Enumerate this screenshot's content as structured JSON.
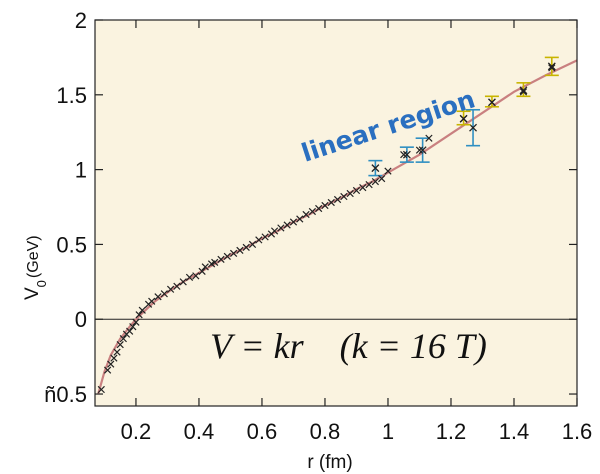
{
  "chart_data": {
    "type": "scatter",
    "title": "",
    "xlabel": "r (fm)",
    "ylabel_main": "V",
    "ylabel_sub": "0",
    "ylabel_unit": "(GeV)",
    "xlim": [
      0.07,
      1.6
    ],
    "ylim": [
      -0.58,
      2.0
    ],
    "x_ticks": [
      0.2,
      0.4,
      0.6,
      0.8,
      1,
      1.2,
      1.4,
      1.6
    ],
    "x_tick_labels": [
      "0.2",
      "0.4",
      "0.6",
      "0.8",
      "1",
      "1.2",
      "1.4",
      "1.6"
    ],
    "y_ticks": [
      -0.5,
      0,
      0.5,
      1,
      1.5,
      2
    ],
    "y_tick_labels": [
      "ñ0.5",
      "0",
      "0.5",
      "1",
      "1.5",
      "2"
    ],
    "grid": false,
    "zero_line": true,
    "annotation": "linear region",
    "formula": "V = kr    (k = 16 T)",
    "colors": {
      "background": "#faf3e0",
      "fit": "#c98080",
      "points": "#222222",
      "blue_errorbars": "#2f8fc2",
      "yellow_errorbars": "#c8b400",
      "annotation": "#2a6fc0"
    },
    "fit_curve": {
      "x": [
        0.08,
        0.1,
        0.12,
        0.15,
        0.18,
        0.2,
        0.23,
        0.26,
        0.3,
        0.35,
        0.4,
        0.45,
        0.5,
        0.55,
        0.6,
        0.65,
        0.7,
        0.75,
        0.8,
        0.85,
        0.9,
        0.95,
        1.0,
        1.1,
        1.2,
        1.3,
        1.4,
        1.5,
        1.6
      ],
      "y": [
        -0.5,
        -0.35,
        -0.24,
        -0.13,
        -0.05,
        0.0,
        0.06,
        0.12,
        0.18,
        0.25,
        0.31,
        0.37,
        0.43,
        0.48,
        0.54,
        0.59,
        0.65,
        0.7,
        0.76,
        0.81,
        0.87,
        0.92,
        0.98,
        1.1,
        1.24,
        1.38,
        1.52,
        1.63,
        1.73
      ]
    },
    "series": [
      {
        "x": [
          0.09,
          0.11,
          0.12,
          0.13,
          0.14,
          0.15,
          0.16,
          0.17,
          0.18,
          0.19,
          0.2,
          0.21,
          0.22,
          0.24,
          0.25,
          0.27,
          0.29,
          0.31,
          0.33,
          0.35,
          0.37,
          0.39,
          0.41,
          0.42,
          0.44,
          0.45,
          0.47,
          0.49,
          0.51,
          0.53,
          0.55,
          0.57,
          0.59,
          0.61,
          0.63,
          0.64,
          0.66,
          0.68,
          0.7,
          0.72,
          0.74,
          0.76,
          0.78,
          0.8,
          0.82,
          0.84,
          0.86,
          0.88,
          0.9,
          0.92,
          0.94,
          0.96,
          0.98,
          1.0,
          1.05,
          1.1,
          1.13,
          1.24,
          1.33,
          1.43,
          1.52
        ],
        "y": [
          -0.47,
          -0.34,
          -0.3,
          -0.26,
          -0.22,
          -0.17,
          -0.13,
          -0.1,
          -0.08,
          -0.05,
          -0.02,
          0.03,
          0.06,
          0.1,
          0.12,
          0.15,
          0.17,
          0.2,
          0.22,
          0.25,
          0.28,
          0.29,
          0.32,
          0.35,
          0.37,
          0.38,
          0.4,
          0.42,
          0.44,
          0.46,
          0.48,
          0.5,
          0.53,
          0.55,
          0.57,
          0.59,
          0.61,
          0.63,
          0.65,
          0.67,
          0.7,
          0.72,
          0.74,
          0.76,
          0.78,
          0.8,
          0.82,
          0.84,
          0.86,
          0.88,
          0.9,
          0.92,
          0.94,
          0.99,
          1.1,
          1.13,
          1.21,
          1.34,
          1.45,
          1.52,
          1.68
        ]
      }
    ],
    "blue_error_points": [
      {
        "x": 0.96,
        "y": 1.01,
        "low": 0.96,
        "high": 1.06
      },
      {
        "x": 1.06,
        "y": 1.1,
        "low": 1.05,
        "high": 1.15
      },
      {
        "x": 1.11,
        "y": 1.13,
        "low": 1.05,
        "high": 1.21
      },
      {
        "x": 1.27,
        "y": 1.28,
        "low": 1.16,
        "high": 1.4
      }
    ],
    "yellow_error_points": [
      {
        "x": 1.24,
        "y": 1.34,
        "low": 1.3,
        "high": 1.39
      },
      {
        "x": 1.33,
        "y": 1.45,
        "low": 1.42,
        "high": 1.49
      },
      {
        "x": 1.43,
        "y": 1.53,
        "low": 1.49,
        "high": 1.58
      },
      {
        "x": 1.52,
        "y": 1.69,
        "low": 1.63,
        "high": 1.75
      }
    ]
  }
}
